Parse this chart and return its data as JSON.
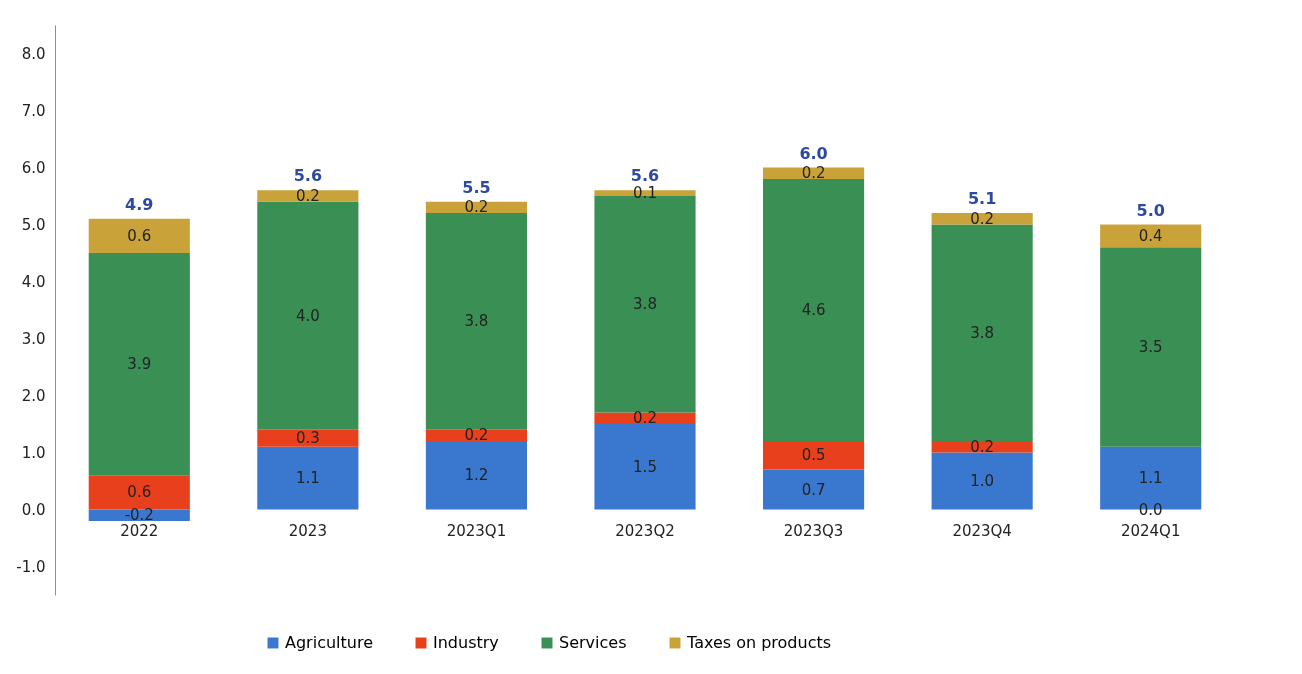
{
  "chart_data": {
    "type": "bar",
    "stacked": true,
    "categories": [
      "2022",
      "2023",
      "2023Q1",
      "2023Q2",
      "2023Q3",
      "2023Q4",
      "2024Q1"
    ],
    "series": [
      {
        "name": "Agriculture",
        "color": "#3a78d0",
        "values": [
          -0.2,
          1.1,
          1.2,
          1.5,
          0.7,
          1.0,
          1.1
        ]
      },
      {
        "name": "Industry",
        "color": "#e8401c",
        "values": [
          0.6,
          0.3,
          0.2,
          0.2,
          0.5,
          0.2,
          0.0
        ]
      },
      {
        "name": "Services",
        "color": "#3a8f55",
        "values": [
          3.9,
          4.0,
          3.8,
          3.8,
          4.6,
          3.8,
          3.5
        ]
      },
      {
        "name": "Taxes on products",
        "color": "#c9a23a",
        "values": [
          0.6,
          0.2,
          0.2,
          0.1,
          0.2,
          0.2,
          0.4
        ]
      }
    ],
    "totals": [
      "4.9",
      "5.6",
      "5.5",
      "5.6",
      "6.0",
      "5.1",
      "5.0"
    ],
    "value_labels": [
      [
        "-0.2",
        "1.1",
        "1.2",
        "1.5",
        "0.7",
        "1.0",
        "1.1"
      ],
      [
        "0.6",
        "0.3",
        "0.2",
        "0.2",
        "0.5",
        "0.2",
        "0.0"
      ],
      [
        "3.9",
        "4.0",
        "3.8",
        "3.8",
        "4.6",
        "3.8",
        "3.5"
      ],
      [
        "0.6",
        "0.2",
        "0.2",
        "0.1",
        "0.2",
        "0.2",
        "0.4"
      ]
    ],
    "ylim": [
      -1.5,
      8.5
    ],
    "yticks": [
      {
        "value": -1,
        "label": "-1.0"
      },
      {
        "value": 0,
        "label": "0.0"
      },
      {
        "value": 1,
        "label": "1.0"
      },
      {
        "value": 2,
        "label": "2.0"
      },
      {
        "value": 3,
        "label": "3.0"
      },
      {
        "value": 4,
        "label": "4.0"
      },
      {
        "value": 5,
        "label": "5.0"
      },
      {
        "value": 6,
        "label": "6.0"
      },
      {
        "value": 7,
        "label": "7.0"
      },
      {
        "value": 8,
        "label": "8.0"
      }
    ],
    "grid": false,
    "legend": "bottom"
  }
}
